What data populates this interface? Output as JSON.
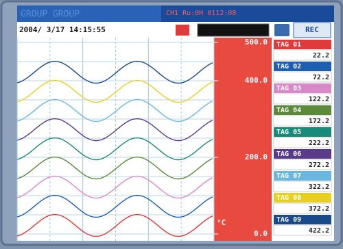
{
  "header": {
    "title": "GROUP GROUP",
    "status": "CH1 Ru:0H 0112:08",
    "datetime": "2004/ 3/17 14:15:55",
    "button": "REC"
  },
  "scale": {
    "ylim": [
      0,
      500
    ],
    "ticks": [
      {
        "value": 500,
        "label": "500.0"
      },
      {
        "value": 400,
        "label": "400.0"
      },
      {
        "value": 200,
        "label": "200.0"
      },
      {
        "value": 0,
        "label": "0.0"
      }
    ],
    "unit": "°C"
  },
  "tags": [
    {
      "name": "TAG 01",
      "value": 22.2,
      "color": "#e03a3a"
    },
    {
      "name": "TAG 02",
      "value": 72.2,
      "color": "#1d5fb0"
    },
    {
      "name": "TAG 03",
      "value": 122.2,
      "color": "#d88ac8"
    },
    {
      "name": "TAG 04",
      "value": 172.2,
      "color": "#5a8a3a"
    },
    {
      "name": "TAG 05",
      "value": 222.2,
      "color": "#1a8a7a"
    },
    {
      "name": "TAG 06",
      "value": 272.2,
      "color": "#5a3a8a"
    },
    {
      "name": "TAG 07",
      "value": 322.2,
      "color": "#6ab8e0"
    },
    {
      "name": "TAG 08",
      "value": 372.2,
      "color": "#e8d020"
    },
    {
      "name": "TAG 09",
      "value": 422.2,
      "color": "#1a4a8a"
    }
  ]
}
